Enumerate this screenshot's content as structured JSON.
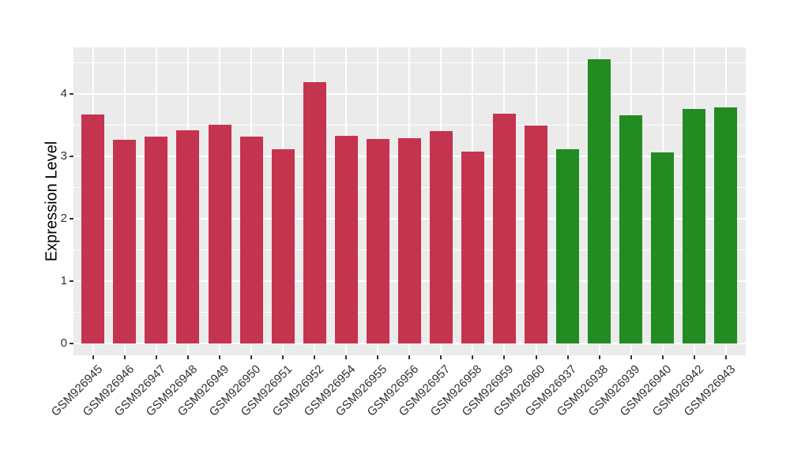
{
  "chart_data": {
    "type": "bar",
    "title": "",
    "xlabel": "",
    "ylabel": "Expression Level",
    "categories": [
      "GSM926945",
      "GSM926946",
      "GSM926947",
      "GSM926948",
      "GSM926949",
      "GSM926950",
      "GSM926951",
      "GSM926952",
      "GSM926954",
      "GSM926955",
      "GSM926956",
      "GSM926957",
      "GSM926958",
      "GSM926959",
      "GSM926960",
      "GSM926937",
      "GSM926938",
      "GSM926939",
      "GSM926940",
      "GSM926942",
      "GSM926943"
    ],
    "values": [
      3.67,
      3.26,
      3.32,
      3.42,
      3.51,
      3.32,
      3.11,
      4.19,
      3.33,
      3.28,
      3.29,
      3.41,
      3.08,
      3.68,
      3.5,
      3.12,
      4.56,
      3.66,
      3.06,
      3.76,
      3.78
    ],
    "bar_colors": [
      "#C4344F",
      "#C4344F",
      "#C4344F",
      "#C4344F",
      "#C4344F",
      "#C4344F",
      "#C4344F",
      "#C4344F",
      "#C4344F",
      "#C4344F",
      "#C4344F",
      "#C4344F",
      "#C4344F",
      "#C4344F",
      "#C4344F",
      "#228B22",
      "#228B22",
      "#228B22",
      "#228B22",
      "#228B22",
      "#228B22"
    ],
    "group_colors": {
      "first_15_bars": "#C4344F",
      "last_6_bars": "#228B22"
    },
    "y_ticks": [
      "0",
      "1",
      "2",
      "3",
      "4"
    ],
    "y_tick_values": [
      0,
      1,
      2,
      3,
      4
    ],
    "ylim": [
      -0.19,
      4.75
    ],
    "grid": {
      "major": true,
      "minor": true,
      "color": "#FFFFFF",
      "vertical_at_bar_centers": true
    },
    "panel_background": "#EBEBEB",
    "legend": null
  }
}
